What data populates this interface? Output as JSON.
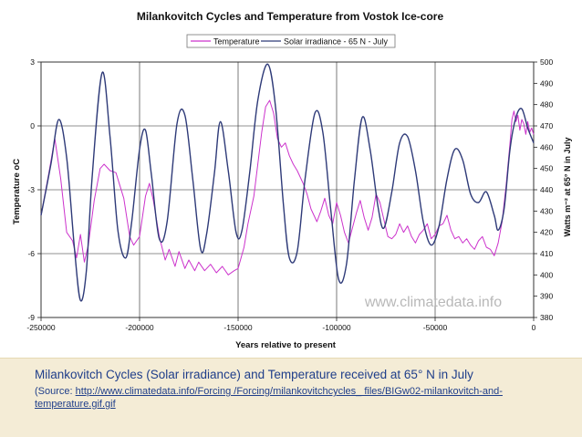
{
  "chart_data": {
    "type": "line",
    "title": "Milankovitch Cycles and Temperature from Vostok Ice-core",
    "xlabel": "Years relative to present",
    "ylabel_left": "Temperature oC",
    "ylabel_right": "Watts m⁻² at 65° N in July",
    "xlim": [
      -250000,
      0
    ],
    "ylim_left": [
      -9,
      3
    ],
    "ylim_right": [
      380,
      500
    ],
    "x_ticks": [
      -250000,
      -200000,
      -150000,
      -100000,
      -50000,
      0
    ],
    "y_left_ticks": [
      -9,
      -6,
      -3,
      0,
      3
    ],
    "y_right_ticks": [
      380,
      390,
      400,
      410,
      420,
      430,
      440,
      450,
      460,
      470,
      480,
      490,
      500
    ],
    "grid": true,
    "legend_position": "top",
    "watermark": "www.climatedata.info",
    "series": [
      {
        "name": "Temperature",
        "axis": "left",
        "color": "#cc33cc",
        "points": [
          [
            -250000,
            -4.2
          ],
          [
            -246000,
            -2.2
          ],
          [
            -243000,
            -0.6
          ],
          [
            -240000,
            -2.5
          ],
          [
            -237000,
            -5.0
          ],
          [
            -234000,
            -5.4
          ],
          [
            -232000,
            -6.2
          ],
          [
            -230000,
            -5.1
          ],
          [
            -228000,
            -6.4
          ],
          [
            -226000,
            -5.6
          ],
          [
            -223000,
            -3.5
          ],
          [
            -220000,
            -2.0
          ],
          [
            -218000,
            -1.8
          ],
          [
            -215000,
            -2.1
          ],
          [
            -212000,
            -2.2
          ],
          [
            -210000,
            -2.8
          ],
          [
            -208000,
            -3.4
          ],
          [
            -205000,
            -5.2
          ],
          [
            -203000,
            -5.6
          ],
          [
            -200000,
            -5.2
          ],
          [
            -197000,
            -3.3
          ],
          [
            -195000,
            -2.7
          ],
          [
            -193000,
            -3.5
          ],
          [
            -190000,
            -5.2
          ],
          [
            -187000,
            -6.3
          ],
          [
            -185000,
            -5.8
          ],
          [
            -182000,
            -6.6
          ],
          [
            -180000,
            -5.9
          ],
          [
            -177000,
            -6.7
          ],
          [
            -175000,
            -6.3
          ],
          [
            -172000,
            -6.8
          ],
          [
            -170000,
            -6.4
          ],
          [
            -167000,
            -6.8
          ],
          [
            -164000,
            -6.5
          ],
          [
            -161000,
            -6.9
          ],
          [
            -158000,
            -6.6
          ],
          [
            -155000,
            -7.0
          ],
          [
            -152000,
            -6.8
          ],
          [
            -150000,
            -6.7
          ],
          [
            -147000,
            -5.7
          ],
          [
            -145000,
            -4.6
          ],
          [
            -142000,
            -3.3
          ],
          [
            -140000,
            -1.8
          ],
          [
            -138000,
            -0.3
          ],
          [
            -136000,
            0.9
          ],
          [
            -134000,
            1.2
          ],
          [
            -132000,
            0.6
          ],
          [
            -130000,
            -0.6
          ],
          [
            -128000,
            -1.0
          ],
          [
            -126000,
            -0.8
          ],
          [
            -124000,
            -1.4
          ],
          [
            -122000,
            -1.8
          ],
          [
            -120000,
            -2.1
          ],
          [
            -117000,
            -2.7
          ],
          [
            -115000,
            -3.2
          ],
          [
            -113000,
            -3.9
          ],
          [
            -110000,
            -4.5
          ],
          [
            -108000,
            -4.0
          ],
          [
            -106000,
            -3.4
          ],
          [
            -104000,
            -4.2
          ],
          [
            -102000,
            -4.6
          ],
          [
            -100000,
            -3.6
          ],
          [
            -98000,
            -4.2
          ],
          [
            -96000,
            -5.0
          ],
          [
            -94000,
            -5.5
          ],
          [
            -92000,
            -4.8
          ],
          [
            -90000,
            -4.1
          ],
          [
            -88000,
            -3.5
          ],
          [
            -86000,
            -4.3
          ],
          [
            -84000,
            -4.9
          ],
          [
            -82000,
            -4.3
          ],
          [
            -80000,
            -3.2
          ],
          [
            -78000,
            -3.6
          ],
          [
            -76000,
            -4.4
          ],
          [
            -74000,
            -5.2
          ],
          [
            -72000,
            -5.3
          ],
          [
            -70000,
            -5.1
          ],
          [
            -68000,
            -4.6
          ],
          [
            -66000,
            -5.0
          ],
          [
            -64000,
            -4.7
          ],
          [
            -62000,
            -5.2
          ],
          [
            -60000,
            -5.5
          ],
          [
            -58000,
            -5.1
          ],
          [
            -56000,
            -4.9
          ],
          [
            -54000,
            -4.6
          ],
          [
            -52000,
            -5.3
          ],
          [
            -50000,
            -5.1
          ],
          [
            -48000,
            -4.7
          ],
          [
            -46000,
            -4.6
          ],
          [
            -44000,
            -4.2
          ],
          [
            -42000,
            -4.9
          ],
          [
            -40000,
            -5.3
          ],
          [
            -38000,
            -5.2
          ],
          [
            -36000,
            -5.5
          ],
          [
            -34000,
            -5.3
          ],
          [
            -32000,
            -5.6
          ],
          [
            -30000,
            -5.8
          ],
          [
            -28000,
            -5.4
          ],
          [
            -26000,
            -5.2
          ],
          [
            -24000,
            -5.7
          ],
          [
            -22000,
            -5.8
          ],
          [
            -20000,
            -6.1
          ],
          [
            -18000,
            -5.5
          ],
          [
            -16000,
            -4.5
          ],
          [
            -14000,
            -2.8
          ],
          [
            -12000,
            -0.8
          ],
          [
            -11000,
            0.3
          ],
          [
            -10000,
            0.7
          ],
          [
            -9000,
            0.2
          ],
          [
            -8000,
            0.5
          ],
          [
            -7000,
            -0.2
          ],
          [
            -6000,
            0.3
          ],
          [
            -5000,
            0.1
          ],
          [
            -4000,
            -0.4
          ],
          [
            -3000,
            0.2
          ],
          [
            -2000,
            -0.3
          ],
          [
            -1000,
            -0.1
          ],
          [
            0,
            -0.4
          ]
        ]
      },
      {
        "name": "Solar irradiance - 65 N - July",
        "axis": "right",
        "color": "#2e3a78",
        "points": [
          [
            -250000,
            428
          ],
          [
            -245000,
            452
          ],
          [
            -241000,
            473
          ],
          [
            -237000,
            455
          ],
          [
            -233000,
            412
          ],
          [
            -230000,
            388
          ],
          [
            -227000,
            402
          ],
          [
            -224000,
            447
          ],
          [
            -219000,
            495
          ],
          [
            -215000,
            465
          ],
          [
            -211000,
            421
          ],
          [
            -207000,
            408
          ],
          [
            -204000,
            425
          ],
          [
            -200000,
            459
          ],
          [
            -197000,
            468
          ],
          [
            -194000,
            447
          ],
          [
            -190000,
            417
          ],
          [
            -186000,
            425
          ],
          [
            -181000,
            471
          ],
          [
            -177000,
            475
          ],
          [
            -173000,
            445
          ],
          [
            -169000,
            412
          ],
          [
            -166000,
            419
          ],
          [
            -162000,
            448
          ],
          [
            -159000,
            472
          ],
          [
            -155000,
            449
          ],
          [
            -151000,
            420
          ],
          [
            -148000,
            421
          ],
          [
            -144000,
            449
          ],
          [
            -140000,
            482
          ],
          [
            -135000,
            499
          ],
          [
            -131000,
            479
          ],
          [
            -127000,
            433
          ],
          [
            -124000,
            408
          ],
          [
            -120000,
            411
          ],
          [
            -116000,
            445
          ],
          [
            -111000,
            476
          ],
          [
            -107000,
            467
          ],
          [
            -103000,
            431
          ],
          [
            -99000,
            398
          ],
          [
            -95000,
            405
          ],
          [
            -91000,
            444
          ],
          [
            -87000,
            474
          ],
          [
            -83000,
            459
          ],
          [
            -79000,
            432
          ],
          [
            -76000,
            422
          ],
          [
            -72000,
            439
          ],
          [
            -68000,
            462
          ],
          [
            -64000,
            465
          ],
          [
            -60000,
            449
          ],
          [
            -56000,
            425
          ],
          [
            -52000,
            414
          ],
          [
            -48000,
            423
          ],
          [
            -44000,
            445
          ],
          [
            -40000,
            459
          ],
          [
            -36000,
            454
          ],
          [
            -32000,
            438
          ],
          [
            -28000,
            434
          ],
          [
            -24000,
            439
          ],
          [
            -20000,
            428
          ],
          [
            -18000,
            421
          ],
          [
            -15000,
            431
          ],
          [
            -12000,
            459
          ],
          [
            -9000,
            474
          ],
          [
            -6000,
            478
          ],
          [
            -3000,
            469
          ],
          [
            0,
            462
          ]
        ]
      }
    ]
  },
  "caption": {
    "main": "Milankovitch Cycles (Solar irradiance) and Temperature received at 65° N in July",
    "source_prefix": "(Source: ",
    "source_link": "http://www.climatedata.info/Forcing /Forcing/milankovitchcycles_ files/BIGw02-milankovitch-and-temperature.gif.gif"
  }
}
